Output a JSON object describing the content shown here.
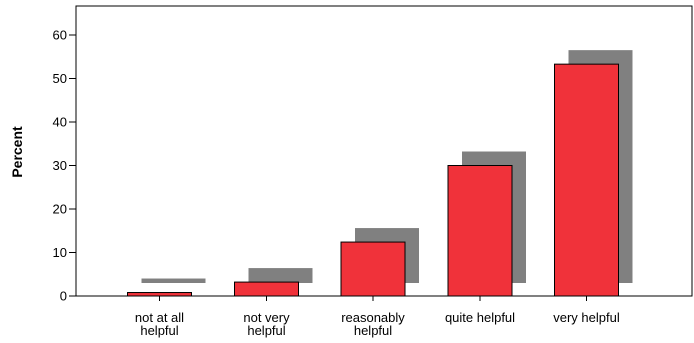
{
  "chart_data": {
    "type": "bar",
    "title": "",
    "xlabel": "",
    "ylabel": "Percent",
    "ylim": [
      0,
      60
    ],
    "yticks": [
      0,
      10,
      20,
      30,
      40,
      50,
      60
    ],
    "categories": [
      [
        "not at all",
        "helpful"
      ],
      [
        "not very",
        "helpful"
      ],
      [
        "reasonably",
        "helpful"
      ],
      [
        "quite helpful"
      ],
      [
        "very helpful"
      ]
    ],
    "values": [
      0.8,
      3.2,
      12.4,
      30.0,
      53.3
    ],
    "bar_style": "3d-shadow",
    "grid": false,
    "legend": "none",
    "colors": {
      "bar_fill": "#f0323a",
      "bar_stroke": "#000000",
      "shadow": "#808080",
      "axis": "#000000"
    }
  }
}
